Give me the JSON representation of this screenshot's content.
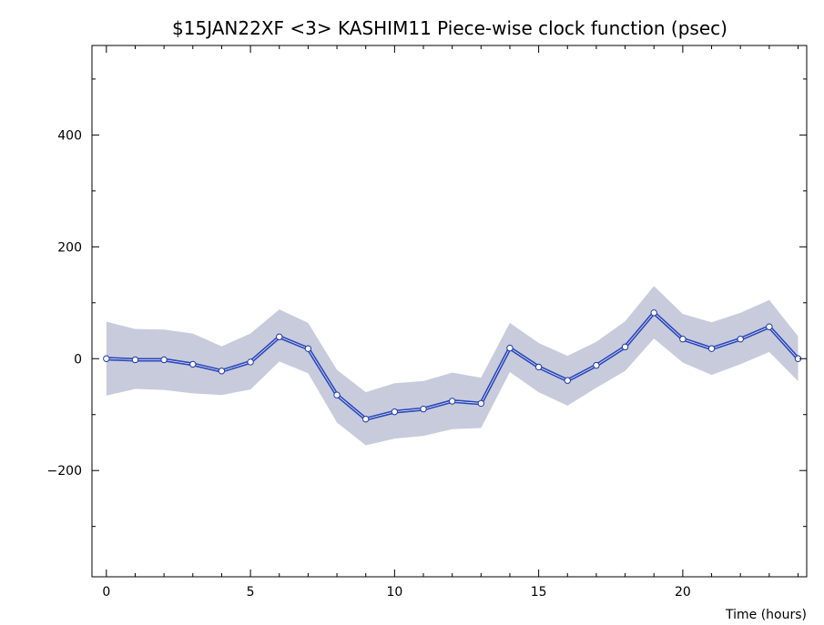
{
  "chart_data": {
    "type": "line",
    "title": "$15JAN22XF <3>   KASHIM11   Piece-wise clock function (psec)",
    "xlabel": "Time (hours)",
    "ylabel": "",
    "xlim": [
      -0.5,
      24.3
    ],
    "ylim": [
      -390,
      560
    ],
    "x_ticks": [
      0,
      5,
      10,
      15,
      20
    ],
    "y_ticks": [
      -200,
      0,
      200,
      400
    ],
    "grid": false,
    "series": [
      {
        "x": [
          0,
          1,
          2,
          3,
          4,
          5,
          6,
          7,
          8,
          9,
          10,
          11,
          12,
          13,
          14,
          15,
          16,
          17,
          18,
          19,
          20,
          21,
          22,
          23,
          24
        ],
        "values": [
          0,
          -2,
          -2,
          -10,
          -22,
          -6,
          39,
          18,
          -65,
          -108,
          -95,
          -90,
          -76,
          -80,
          19,
          -15,
          -39,
          -12,
          21,
          82,
          35,
          18,
          35,
          57,
          0
        ],
        "upper": [
          66,
          53,
          52,
          45,
          22,
          45,
          88,
          64,
          -20,
          -60,
          -44,
          -40,
          -25,
          -34,
          64,
          28,
          5,
          30,
          67,
          130,
          80,
          65,
          82,
          105,
          40
        ],
        "lower": [
          -66,
          -54,
          -56,
          -62,
          -65,
          -55,
          -5,
          -26,
          -114,
          -155,
          -143,
          -138,
          -126,
          -124,
          -24,
          -60,
          -84,
          -52,
          -22,
          36,
          -7,
          -29,
          -10,
          12,
          -40
        ],
        "color": "#2b48b8",
        "band_color": "#c8cbdc"
      }
    ]
  }
}
